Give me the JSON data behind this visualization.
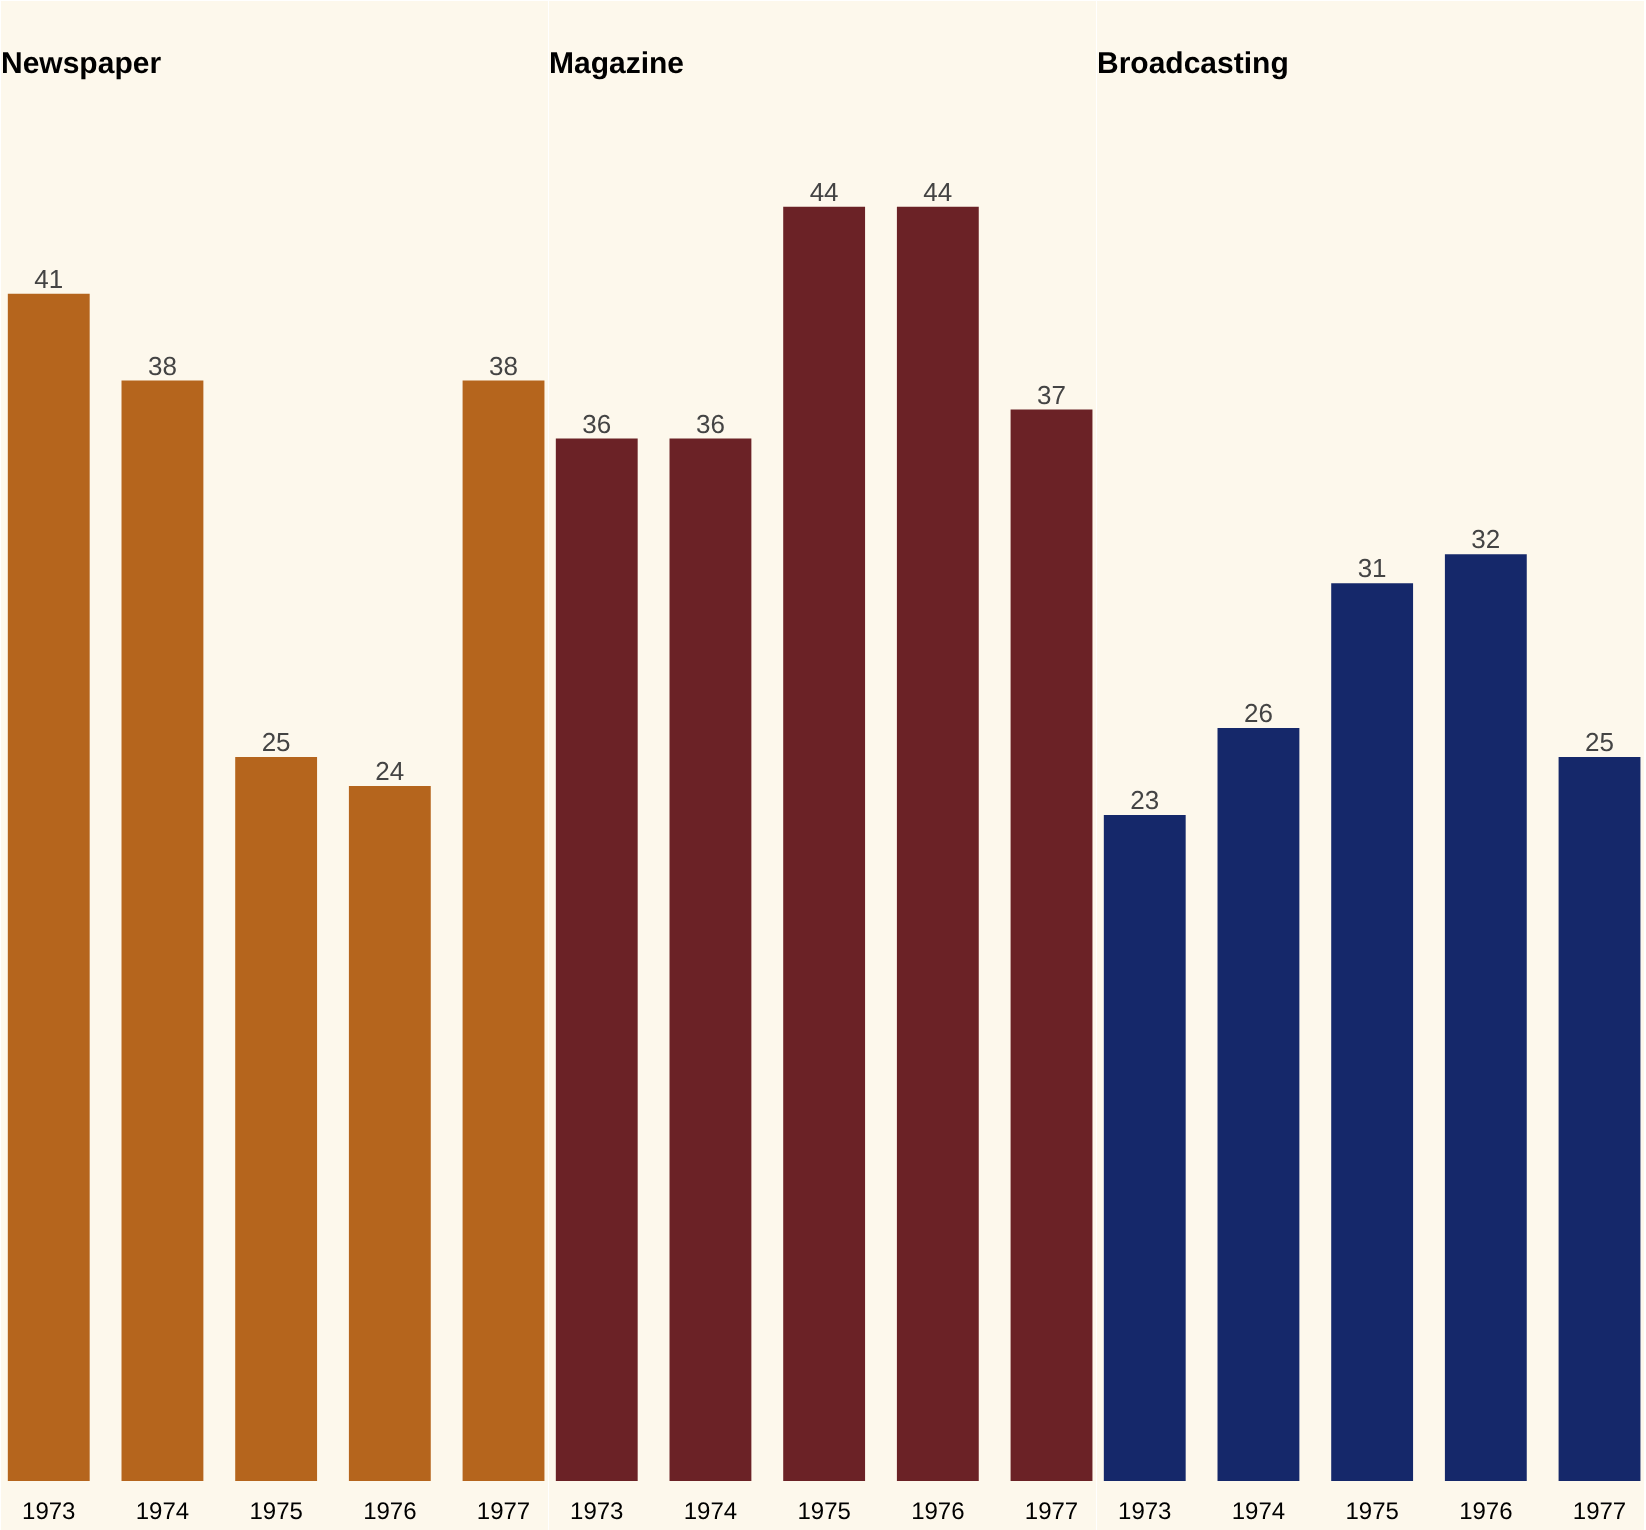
{
  "chart_data": [
    {
      "type": "bar",
      "title": "Newspaper",
      "categories": [
        "1973",
        "1974",
        "1975",
        "1976",
        "1977"
      ],
      "values": [
        41,
        38,
        25,
        24,
        38
      ],
      "color": "#b5651d",
      "data_labels": true,
      "ylim": [
        0,
        48
      ],
      "tick_labels": "x",
      "grid": false
    },
    {
      "type": "bar",
      "title": "Magazine",
      "categories": [
        "1973",
        "1974",
        "1975",
        "1976",
        "1977"
      ],
      "values": [
        36,
        36,
        44,
        44,
        37
      ],
      "color": "#6b2226",
      "data_labels": true,
      "ylim": [
        0,
        48
      ],
      "tick_labels": "x",
      "grid": false
    },
    {
      "type": "bar",
      "title": "Broadcasting",
      "categories": [
        "1973",
        "1974",
        "1975",
        "1976",
        "1977"
      ],
      "values": [
        23,
        26,
        31,
        32,
        25
      ],
      "color": "#15286a",
      "data_labels": true,
      "ylim": [
        0,
        48
      ],
      "tick_labels": "x",
      "grid": false
    }
  ]
}
